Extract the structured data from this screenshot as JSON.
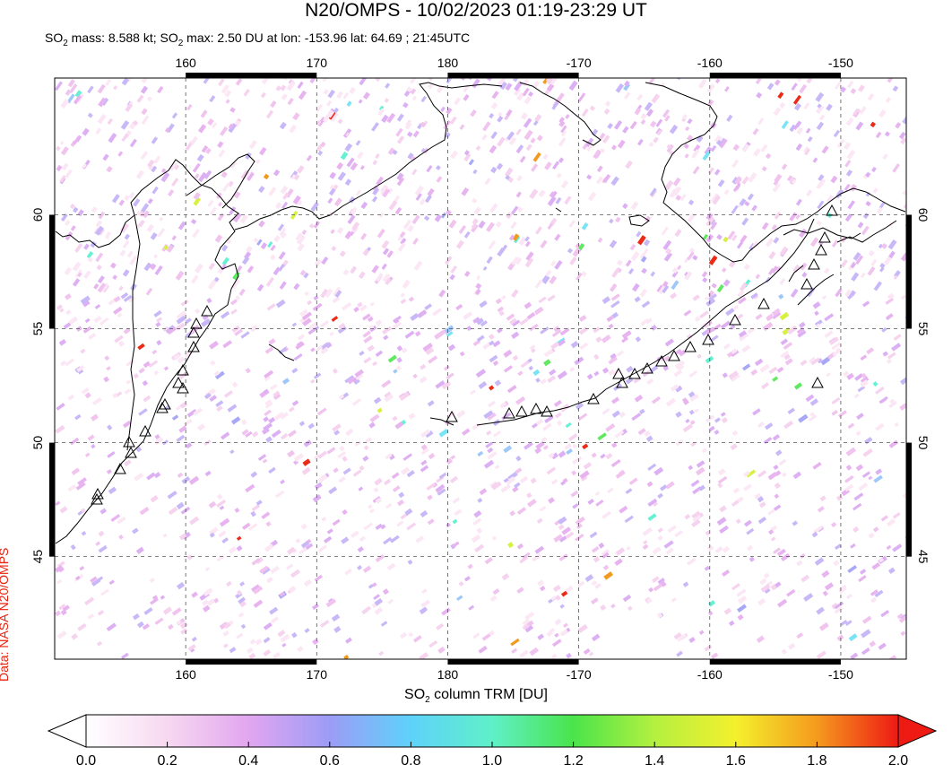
{
  "title": "N20/OMPS - 10/02/2023 01:19-23:29 UT",
  "stats": {
    "mass_prefix": "SO",
    "mass_sub": "2",
    "mass_text": " mass: 8.588 kt; SO",
    "max_sub": "2",
    "max_text": " max: 2.50 DU at lon: -153.96 lat: 64.69 ; 21:45UTC"
  },
  "credit": "Data: NASA N20/OMPS",
  "map": {
    "lon_ticks": [
      "160",
      "170",
      "180",
      "-170",
      "-160",
      "-150"
    ],
    "lon_values": [
      160,
      170,
      180,
      190,
      200,
      210
    ],
    "lon_range": [
      150,
      215
    ],
    "lat_ticks": [
      "60",
      "55",
      "50",
      "45"
    ],
    "lat_values": [
      60,
      55,
      50,
      45
    ],
    "lat_range": [
      40.5,
      66
    ],
    "grid": "dashed"
  },
  "colorbar": {
    "label_prefix": "SO",
    "label_sub": "2",
    "label_text": " column TRM [DU]",
    "ticks": [
      "0.0",
      "0.2",
      "0.4",
      "0.6",
      "0.8",
      "1.0",
      "1.2",
      "1.4",
      "1.6",
      "1.8",
      "2.0"
    ],
    "range": [
      0,
      2
    ],
    "colors": [
      "#ffffff",
      "#f7d8f0",
      "#e2a6f0",
      "#9c9cf6",
      "#5ed2fa",
      "#5ff0c8",
      "#4ae44a",
      "#b4f040",
      "#f4f02c",
      "#f59a1e",
      "#ee1a14"
    ]
  }
}
